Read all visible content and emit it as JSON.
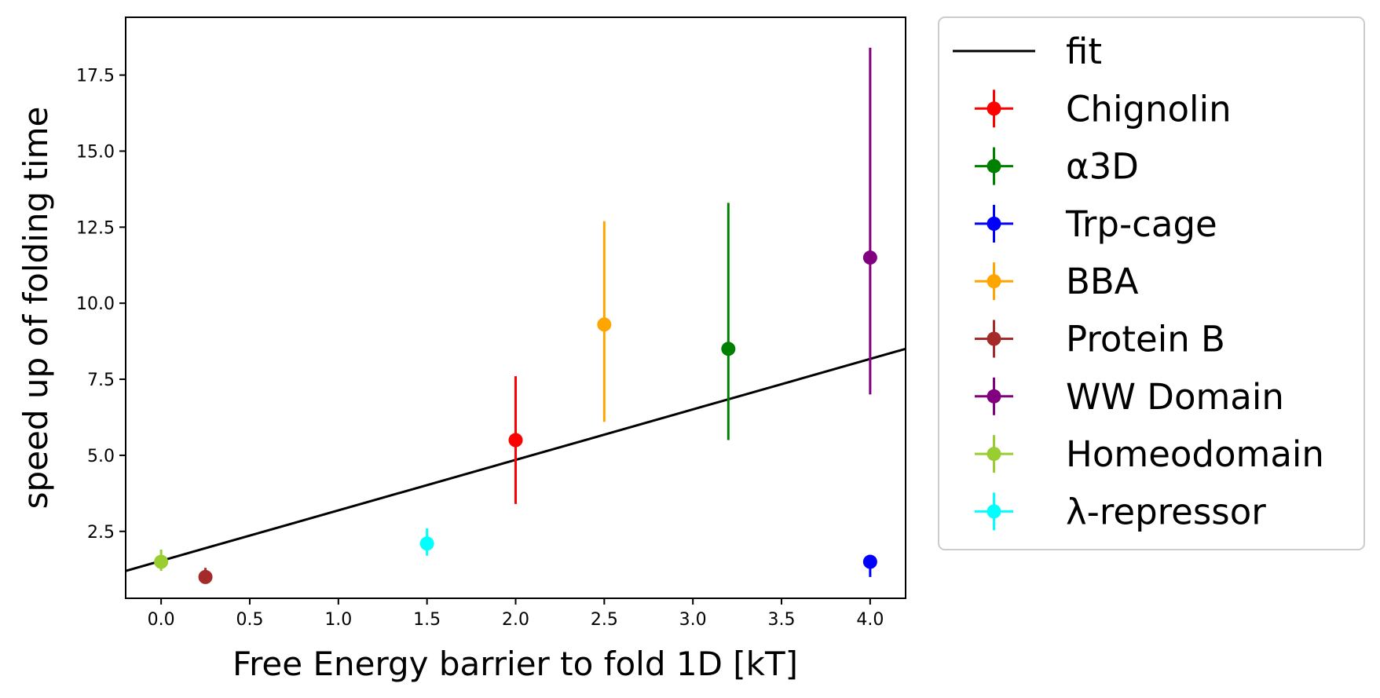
{
  "chart_data": {
    "type": "scatter",
    "title": "",
    "xlabel": "Free Energy barrier to fold 1D [kT]",
    "ylabel": "speed up of folding time",
    "xlim": [
      -0.2,
      4.2
    ],
    "ylim": [
      0.3,
      19.4
    ],
    "xticks": [
      "0.0",
      "0.5",
      "1.0",
      "1.5",
      "2.0",
      "2.5",
      "3.0",
      "3.5",
      "4.0"
    ],
    "yticks": [
      "2.5",
      "5.0",
      "7.5",
      "10.0",
      "12.5",
      "15.0",
      "17.5"
    ],
    "grid": false,
    "legend_position": "outside right",
    "fit": {
      "name": "fit",
      "color": "#000000",
      "x": [
        -0.2,
        4.2
      ],
      "y": [
        1.2,
        8.5
      ]
    },
    "series": [
      {
        "name": "Chignolin",
        "color": "#ff0000",
        "x": 2.0,
        "y": 5.5,
        "yerr_low": 3.4,
        "yerr_high": 7.6
      },
      {
        "name": "α3D",
        "color": "#008000",
        "x": 3.2,
        "y": 8.5,
        "yerr_low": 5.5,
        "yerr_high": 13.3
      },
      {
        "name": "Trp-cage",
        "color": "#0000ff",
        "x": 4.0,
        "y": 1.5,
        "yerr_low": 1.0,
        "yerr_high": 1.7
      },
      {
        "name": "BBA",
        "color": "#ffa500",
        "x": 2.5,
        "y": 9.3,
        "yerr_low": 6.1,
        "yerr_high": 12.7
      },
      {
        "name": "Protein B",
        "color": "#a52a2a",
        "x": 0.25,
        "y": 1.0,
        "yerr_low": 0.8,
        "yerr_high": 1.3
      },
      {
        "name": "WW Domain",
        "color": "#800080",
        "x": 4.0,
        "y": 11.5,
        "yerr_low": 7.0,
        "yerr_high": 18.4
      },
      {
        "name": "Homeodomain",
        "color": "#9acd32",
        "x": 0.0,
        "y": 1.5,
        "yerr_low": 1.2,
        "yerr_high": 1.9
      },
      {
        "name": "λ-repressor",
        "color": "#00ffff",
        "x": 1.5,
        "y": 2.1,
        "yerr_low": 1.7,
        "yerr_high": 2.6
      }
    ]
  }
}
